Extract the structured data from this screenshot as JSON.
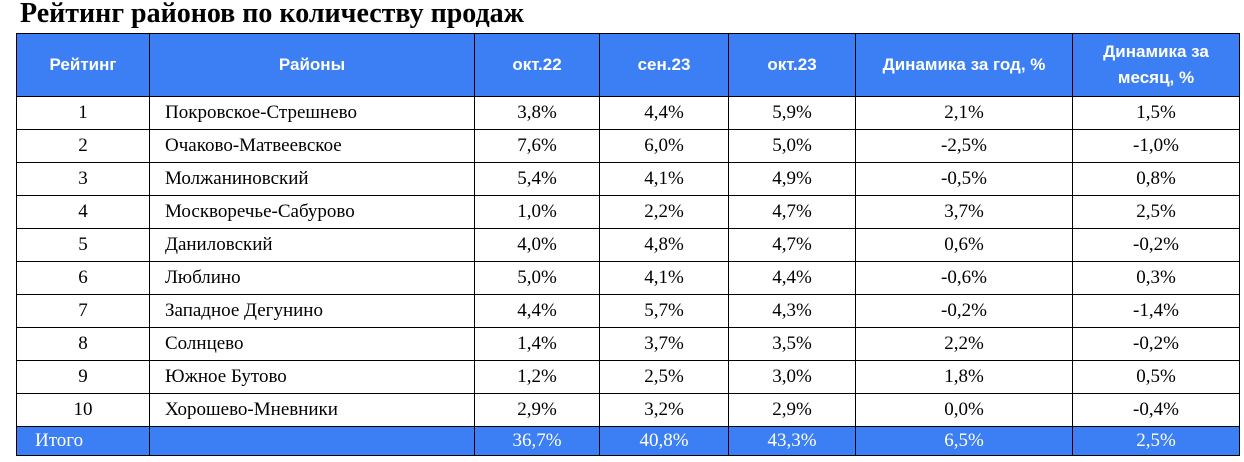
{
  "title": "Рейтинг районов по количеству продаж",
  "table": {
    "headers": [
      "Рейтинг",
      "Районы",
      "окт.22",
      "сен.23",
      "окт.23",
      "Динамика за год, %",
      "Динамика за месяц, %"
    ],
    "rows": [
      [
        "1",
        "Покровское-Стрешнево",
        "3,8%",
        "4,4%",
        "5,9%",
        "2,1%",
        "1,5%"
      ],
      [
        "2",
        "Очаково-Матвеевское",
        "7,6%",
        "6,0%",
        "5,0%",
        "-2,5%",
        "-1,0%"
      ],
      [
        "3",
        "Молжаниновский",
        "5,4%",
        "4,1%",
        "4,9%",
        "-0,5%",
        "0,8%"
      ],
      [
        "4",
        "Москворечье-Сабурово",
        "1,0%",
        "2,2%",
        "4,7%",
        "3,7%",
        "2,5%"
      ],
      [
        "5",
        "Даниловский",
        "4,0%",
        "4,8%",
        "4,7%",
        "0,6%",
        "-0,2%"
      ],
      [
        "6",
        "Люблино",
        "5,0%",
        "4,1%",
        "4,4%",
        "-0,6%",
        "0,3%"
      ],
      [
        "7",
        "Западное Дегунино",
        "4,4%",
        "5,7%",
        "4,3%",
        "-0,2%",
        "-1,4%"
      ],
      [
        "8",
        "Солнцево",
        "1,4%",
        "3,7%",
        "3,5%",
        "2,2%",
        "-0,2%"
      ],
      [
        "9",
        "Южное Бутово",
        "1,2%",
        "2,5%",
        "3,0%",
        "1,8%",
        "0,5%"
      ],
      [
        "10",
        "Хорошево-Мневники",
        "2,9%",
        "3,2%",
        "2,9%",
        "0,0%",
        "-0,4%"
      ]
    ],
    "total": {
      "label": "Итого",
      "district": "",
      "values": [
        "36,7%",
        "40,8%",
        "43,3%",
        "6,5%",
        "2,5%"
      ]
    }
  },
  "colors": {
    "header_bg": "#3c7ff5",
    "header_text": "#ffffff"
  }
}
